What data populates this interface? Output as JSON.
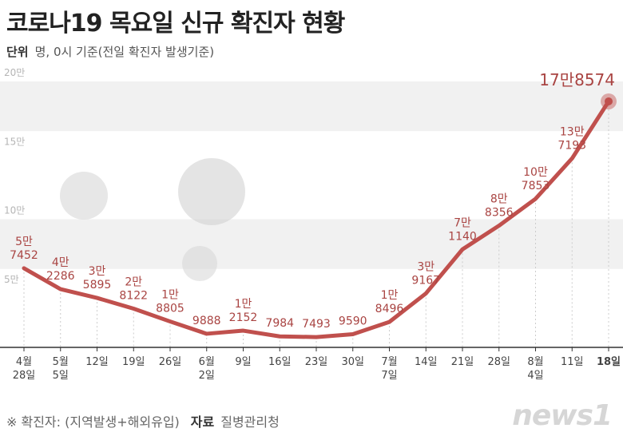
{
  "header": {
    "title": "코로나19 목요일 신규 확진자 현황",
    "unit_label": "단위",
    "unit_text": "명, 0시 기준(전일 확진자 발생기준)"
  },
  "footer": {
    "note": "※ 확진자: (지역발생+해외유입)",
    "source_label": "자료",
    "source_text": "질병관리청",
    "logo": "news1"
  },
  "colors": {
    "line": "#c0504d",
    "label": "#a94442",
    "band": "#f1f1f1"
  },
  "chart_data": {
    "type": "line",
    "title": "코로나19 목요일 신규 확진자 현황",
    "ylim": [
      0,
      200000
    ],
    "yticks": [
      {
        "v": 50000,
        "label": "5만"
      },
      {
        "v": 100000,
        "label": "10만"
      },
      {
        "v": 150000,
        "label": "15만"
      },
      {
        "v": 200000,
        "label": "20만"
      }
    ],
    "points": [
      {
        "x": "4월\n28일",
        "y": 57452,
        "label": "5만\n7452"
      },
      {
        "x": "5월\n5일",
        "y": 42286,
        "label": "4만\n2286"
      },
      {
        "x": "12일",
        "y": 35895,
        "label": "3만\n5895"
      },
      {
        "x": "19일",
        "y": 28122,
        "label": "2만\n8122"
      },
      {
        "x": "26일",
        "y": 18805,
        "label": "1만\n8805"
      },
      {
        "x": "6월\n2일",
        "y": 9888,
        "label": "9888"
      },
      {
        "x": "9일",
        "y": 12152,
        "label": "1만\n2152"
      },
      {
        "x": "16일",
        "y": 7984,
        "label": "7984"
      },
      {
        "x": "23일",
        "y": 7493,
        "label": "7493"
      },
      {
        "x": "30일",
        "y": 9590,
        "label": "9590"
      },
      {
        "x": "7월\n7일",
        "y": 18496,
        "label": "1만\n8496"
      },
      {
        "x": "14일",
        "y": 39167,
        "label": "3만\n9167"
      },
      {
        "x": "21일",
        "y": 71140,
        "label": "7만\n1140"
      },
      {
        "x": "28일",
        "y": 88356,
        "label": "8만\n8356"
      },
      {
        "x": "8월\n4일",
        "y": 107853,
        "label": "10만\n7853"
      },
      {
        "x": "11일",
        "y": 137193,
        "label": "13만\n7193"
      },
      {
        "x": "18일",
        "y": 178574,
        "label": "17만8574"
      }
    ]
  }
}
